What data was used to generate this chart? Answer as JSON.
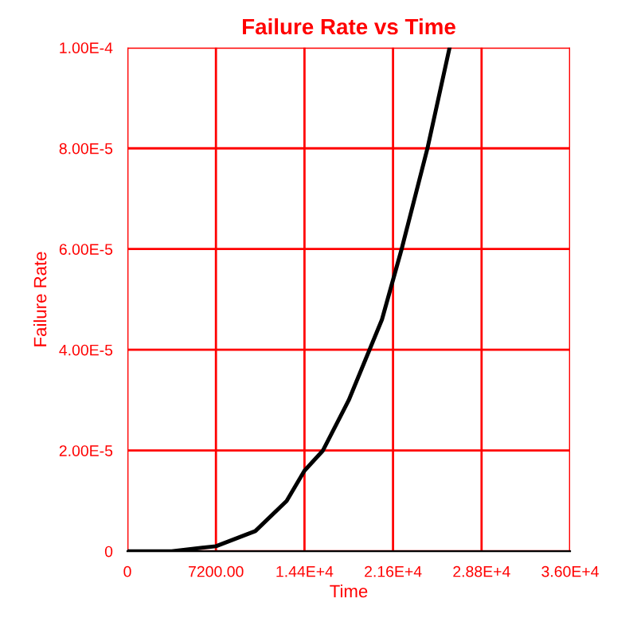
{
  "chart_data": {
    "type": "line",
    "title": "Failure Rate vs Time",
    "xlabel": "Time",
    "ylabel": "Failure Rate",
    "x": [
      0,
      3600,
      7200,
      10400,
      12950,
      14400,
      15900,
      18000,
      20700,
      22300,
      24400,
      26200
    ],
    "series": [
      {
        "color": "#000000",
        "values": [
          0,
          0,
          1e-06,
          4e-06,
          1e-05,
          1.6e-05,
          2e-05,
          3e-05,
          4.6e-05,
          6e-05,
          8e-05,
          0.0001
        ]
      }
    ],
    "xlim": [
      0,
      36000
    ],
    "ylim": [
      0,
      0.0001
    ],
    "xticks": [
      0,
      {
        "value": 7200,
        "label": "7200.00"
      },
      {
        "value": 14400,
        "label": "1.44E+4"
      },
      {
        "value": 21600,
        "label": "2.16E+4"
      },
      {
        "value": 28800,
        "label": "2.88E+4"
      },
      {
        "value": 36000,
        "label": "3.60E+4"
      }
    ],
    "yticks": [
      0,
      {
        "value": 2e-05,
        "label": "2.00E-5"
      },
      {
        "value": 4e-05,
        "label": "4.00E-5"
      },
      {
        "value": 6e-05,
        "label": "6.00E-5"
      },
      {
        "value": 8e-05,
        "label": "8.00E-5"
      },
      {
        "value": 0.0001,
        "label": "1.00E-4"
      }
    ],
    "grid": true,
    "marker": "none",
    "line_style": "solid"
  }
}
